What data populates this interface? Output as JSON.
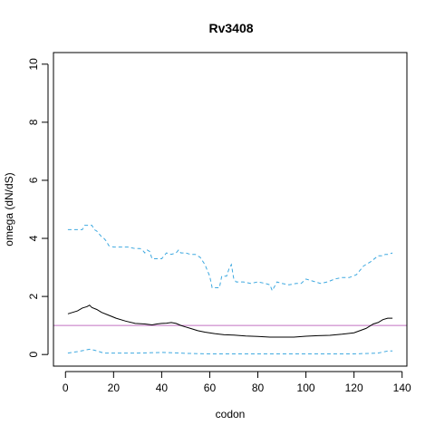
{
  "chart_data": {
    "type": "line",
    "title": "Rv3408",
    "xlabel": "codon",
    "ylabel": "omega (dN/dS)",
    "xlim": [
      -5,
      142
    ],
    "ylim": [
      -0.4,
      10.4
    ],
    "xticks": [
      0,
      20,
      40,
      60,
      80,
      100,
      120,
      140
    ],
    "yticks": [
      0,
      2,
      4,
      6,
      8,
      10
    ],
    "grid": false,
    "reference_line": {
      "y": 1,
      "color": "#c070c0"
    },
    "series": [
      {
        "role": "upper-bound",
        "color": "#3fa9e0",
        "dash": "4,3",
        "x": [
          1,
          5,
          7,
          8,
          11,
          12,
          13,
          15,
          16,
          17,
          18,
          20,
          23,
          26,
          29,
          31,
          32,
          33,
          34,
          35,
          36,
          38,
          40,
          42,
          44,
          46,
          47,
          48,
          50,
          52,
          54,
          56,
          58,
          60,
          61,
          62,
          64,
          65,
          67,
          68,
          69,
          70,
          71,
          72,
          74,
          77,
          80,
          83,
          85,
          86,
          88,
          90,
          93,
          96,
          98,
          100,
          102,
          104,
          106,
          109,
          112,
          115,
          118,
          121,
          124,
          127,
          130,
          132,
          133,
          134,
          136
        ],
        "values": [
          4.3,
          4.3,
          4.3,
          4.45,
          4.45,
          4.3,
          4.25,
          4.05,
          4.0,
          3.9,
          3.75,
          3.7,
          3.7,
          3.7,
          3.65,
          3.65,
          3.6,
          3.5,
          3.6,
          3.55,
          3.3,
          3.3,
          3.3,
          3.5,
          3.45,
          3.5,
          3.6,
          3.5,
          3.5,
          3.45,
          3.45,
          3.35,
          3.1,
          2.7,
          2.3,
          2.3,
          2.3,
          2.7,
          2.7,
          2.95,
          3.1,
          2.6,
          2.5,
          2.5,
          2.5,
          2.45,
          2.5,
          2.45,
          2.4,
          2.2,
          2.5,
          2.45,
          2.4,
          2.45,
          2.45,
          2.6,
          2.55,
          2.5,
          2.45,
          2.5,
          2.6,
          2.65,
          2.65,
          2.75,
          3.05,
          3.2,
          3.4,
          3.4,
          3.45,
          3.45,
          3.5
        ]
      },
      {
        "role": "estimate",
        "color": "#000000",
        "dash": "",
        "x": [
          1,
          3,
          5,
          7,
          9,
          10,
          11,
          13,
          15,
          18,
          21,
          25,
          29,
          33,
          36,
          38,
          40,
          42,
          44,
          46,
          48,
          50,
          52,
          55,
          58,
          62,
          66,
          70,
          75,
          80,
          85,
          90,
          95,
          100,
          105,
          110,
          115,
          120,
          125,
          128,
          130,
          132,
          134,
          136
        ],
        "values": [
          1.4,
          1.45,
          1.5,
          1.6,
          1.65,
          1.7,
          1.62,
          1.55,
          1.45,
          1.35,
          1.25,
          1.15,
          1.07,
          1.05,
          1.02,
          1.05,
          1.07,
          1.08,
          1.1,
          1.07,
          1.0,
          0.95,
          0.9,
          0.82,
          0.77,
          0.72,
          0.68,
          0.67,
          0.64,
          0.62,
          0.6,
          0.6,
          0.6,
          0.63,
          0.65,
          0.66,
          0.7,
          0.75,
          0.9,
          1.05,
          1.1,
          1.2,
          1.25,
          1.25
        ]
      },
      {
        "role": "lower-bound",
        "color": "#3fa9e0",
        "dash": "4,3",
        "x": [
          1,
          5,
          8,
          10,
          12,
          14,
          16,
          20,
          30,
          40,
          45,
          50,
          60,
          80,
          100,
          120,
          130,
          134,
          136
        ],
        "values": [
          0.05,
          0.1,
          0.15,
          0.18,
          0.15,
          0.1,
          0.05,
          0.05,
          0.05,
          0.07,
          0.06,
          0.04,
          0.02,
          0.02,
          0.02,
          0.02,
          0.05,
          0.12,
          0.12
        ]
      }
    ]
  }
}
